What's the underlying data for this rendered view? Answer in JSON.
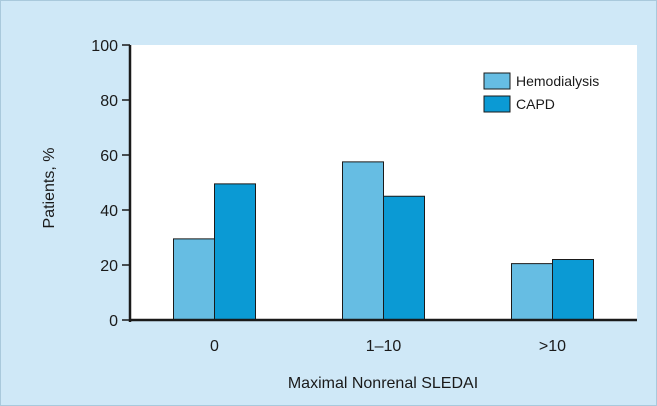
{
  "chart_data": {
    "type": "bar",
    "title": "",
    "xlabel": "Maximal Nonrenal SLEDAI",
    "ylabel": "Patients, %",
    "categories": [
      "0",
      "1–10",
      ">10"
    ],
    "series": [
      {
        "name": "Hemodialysis",
        "values": [
          29.5,
          57.5,
          20.5
        ],
        "color": "#66bde3"
      },
      {
        "name": "CAPD",
        "values": [
          49.5,
          45,
          22
        ],
        "color": "#0b9ad4"
      }
    ],
    "ylim": [
      0,
      100
    ],
    "yticks": [
      0,
      20,
      40,
      60,
      80,
      100
    ],
    "grid": false,
    "legend_position": "top-right",
    "colors": {
      "background": "#cfe8f7",
      "plot_area": "#ffffff",
      "bar_stroke": "#1a1a1a"
    }
  }
}
